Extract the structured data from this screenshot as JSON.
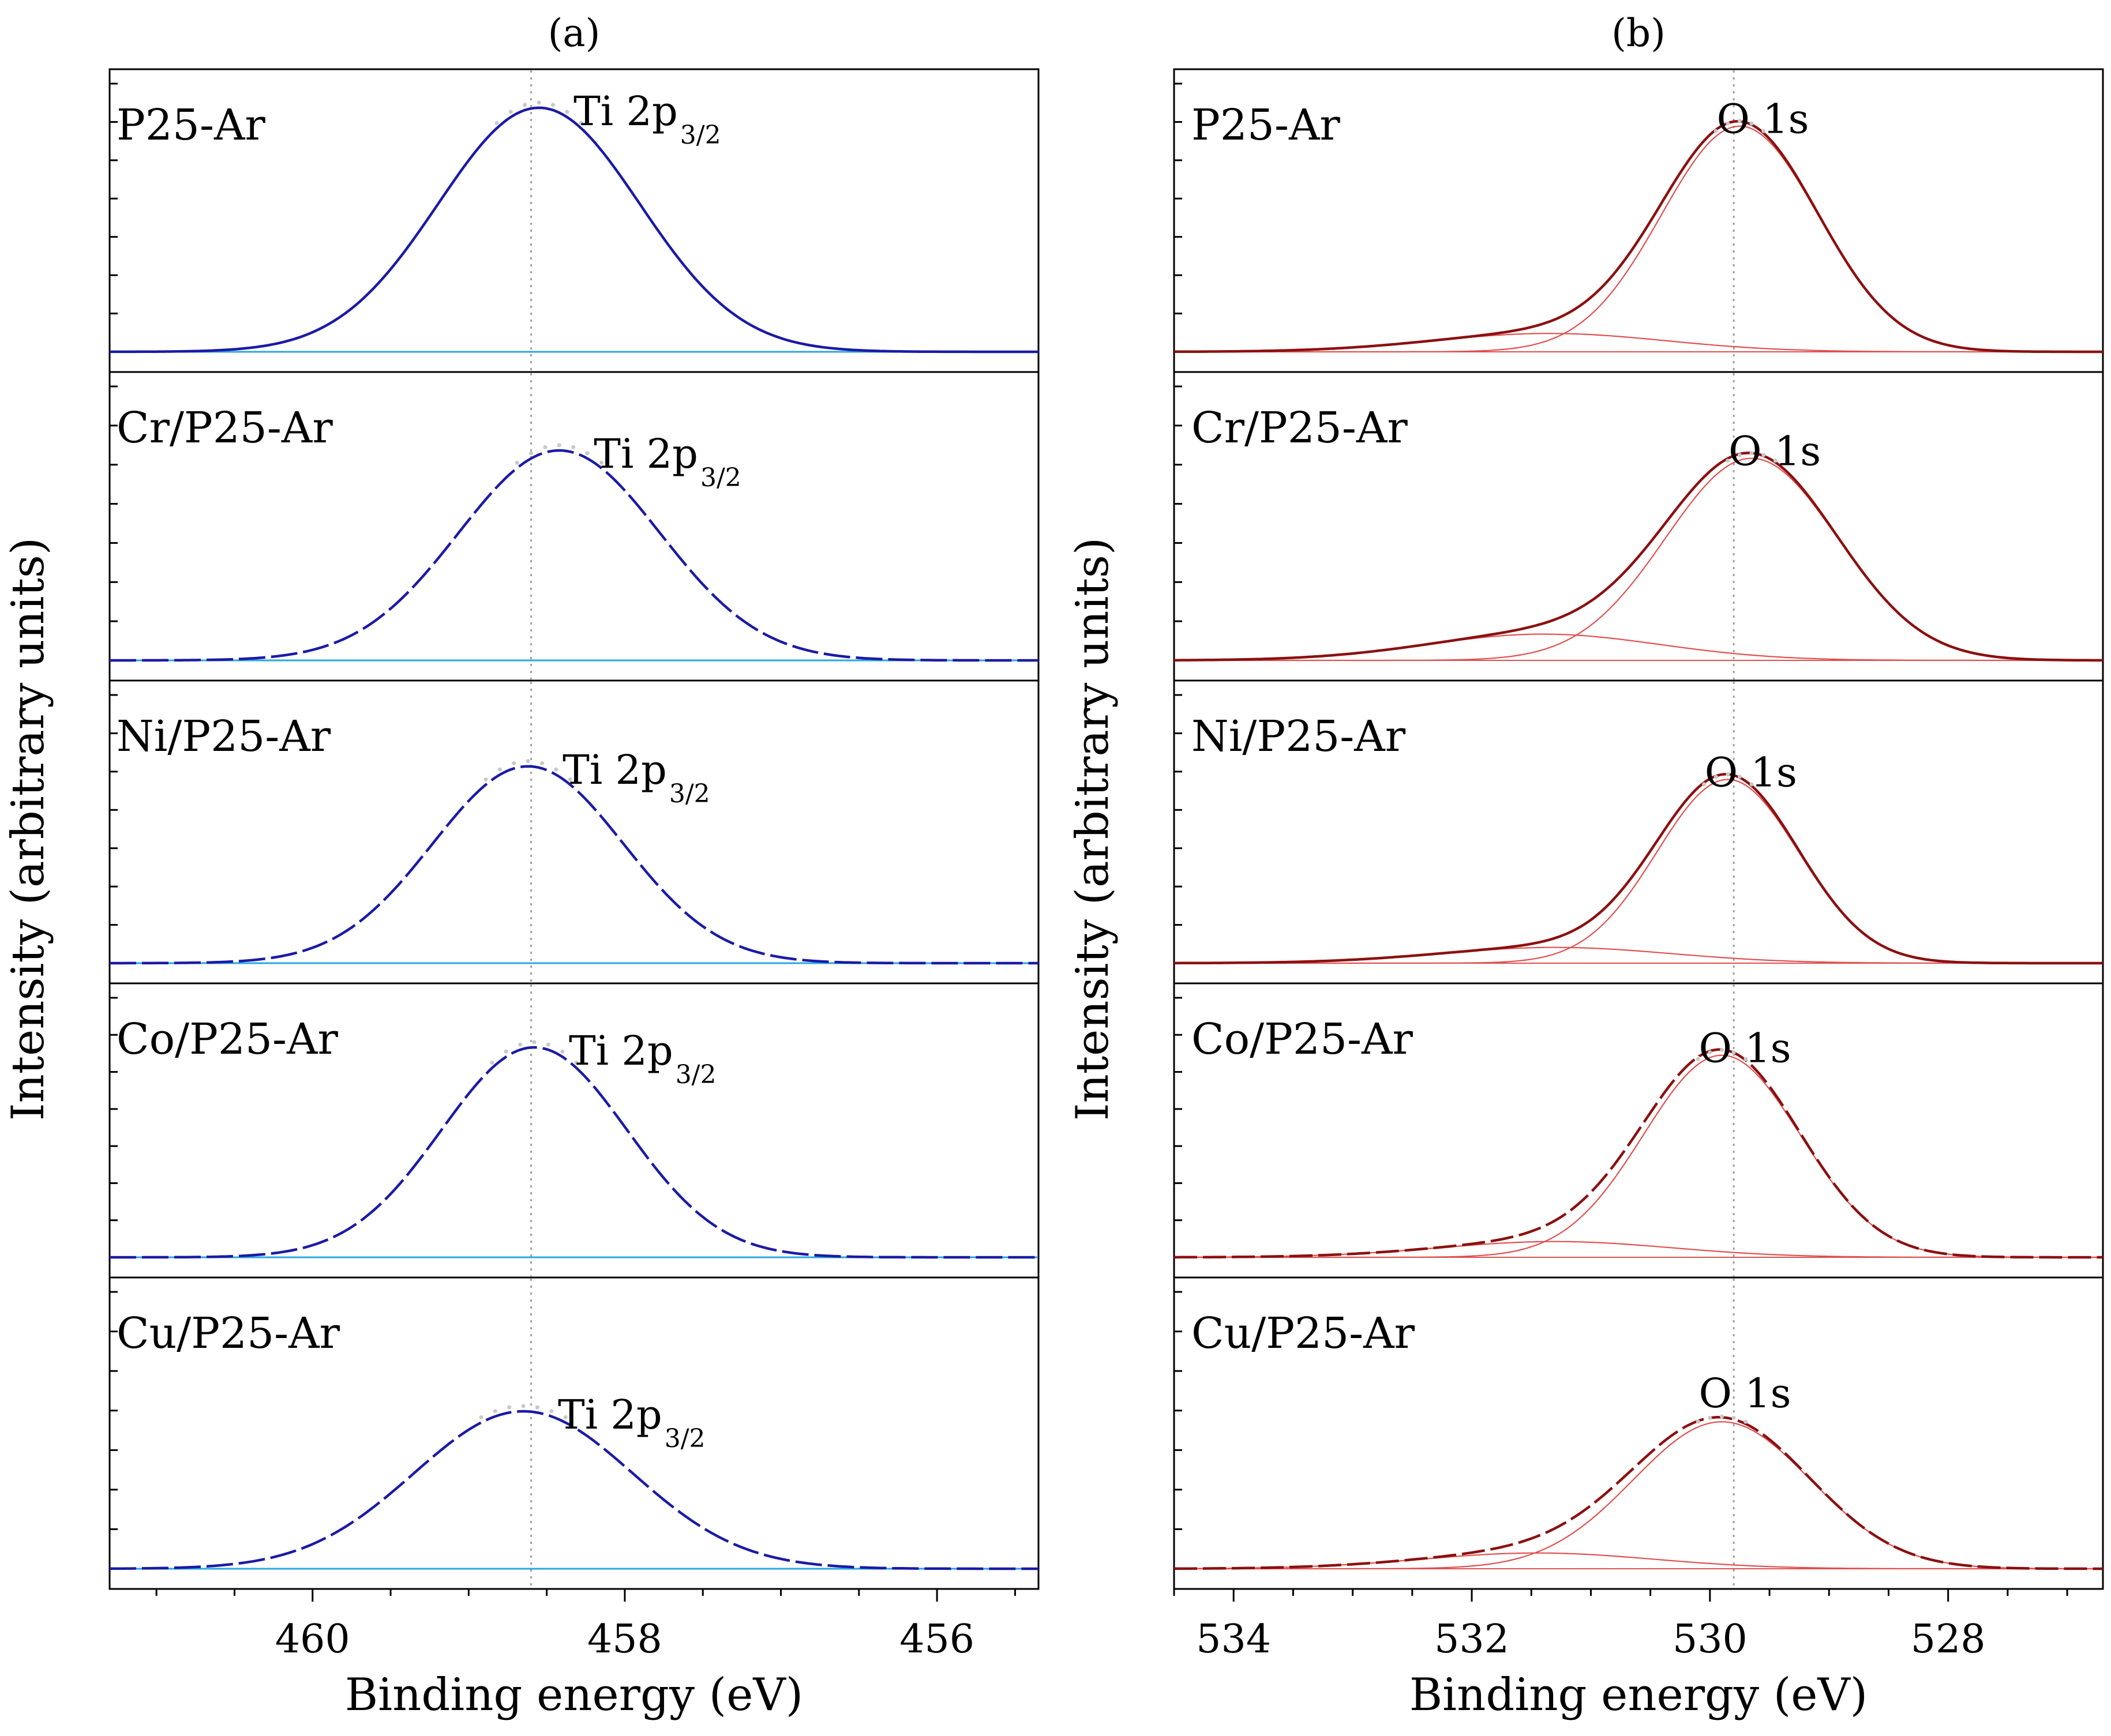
{
  "chart_data": [
    {
      "panel_label": "(a)",
      "type": "line",
      "xlabel": "Binding energy (eV)",
      "ylabel": "Intensity (arbitrary units)",
      "xlim": [
        461.3,
        455.35
      ],
      "x_reversed": true,
      "xticks": [
        "460",
        "458",
        "456"
      ],
      "xtick_values": [
        460,
        458,
        456
      ],
      "reference_line_x": 458.6,
      "colors": {
        "fit": "#1a1aa6",
        "baseline": "#2aa6e0",
        "data_points": "#c8c8c8"
      },
      "subplots": [
        {
          "sample": "P25-Ar",
          "peak_label": "Ti 2p",
          "peak_sub": "3/2",
          "peak_center": 458.55,
          "fwhm": 1.52,
          "amplitude": 0.93
        },
        {
          "sample": "Cr/P25-Ar",
          "peak_label": "Ti 2p",
          "peak_sub": "3/2",
          "peak_center": 458.42,
          "fwhm": 1.52,
          "amplitude": 0.8
        },
        {
          "sample": "Ni/P25-Ar",
          "peak_label": "Ti 2p",
          "peak_sub": "3/2",
          "peak_center": 458.62,
          "fwhm": 1.44,
          "amplitude": 0.75
        },
        {
          "sample": "Co/P25-Ar",
          "peak_label": "Ti 2p",
          "peak_sub": "3/2",
          "peak_center": 458.58,
          "fwhm": 1.4,
          "amplitude": 0.8
        },
        {
          "sample": "Cu/P25-Ar",
          "peak_label": "Ti 2p",
          "peak_sub": "3/2",
          "peak_center": 458.65,
          "fwhm": 1.65,
          "amplitude": 0.6
        }
      ]
    },
    {
      "panel_label": "(b)",
      "type": "line",
      "xlabel": "Binding energy (eV)",
      "ylabel": "Intensity (arbitrary units)",
      "xlim": [
        534.5,
        526.7
      ],
      "x_reversed": true,
      "xticks": [
        "534",
        "532",
        "530",
        "528"
      ],
      "xtick_values": [
        534,
        532,
        530,
        528
      ],
      "reference_line_x": 529.8,
      "colors": {
        "total": "#8b1010",
        "component": "#e05050",
        "data_points": "#c8c8c8"
      },
      "subplots": [
        {
          "sample": "P25-Ar",
          "peak_label": "O 1s",
          "main_center": 529.75,
          "main_fwhm": 1.55,
          "main_amplitude": 0.86,
          "shoulder_center": 531.35,
          "shoulder_fwhm": 2.3,
          "shoulder_amplitude": 0.07
        },
        {
          "sample": "Cr/P25-Ar",
          "peak_label": "O 1s",
          "main_center": 529.65,
          "main_fwhm": 1.7,
          "main_amplitude": 0.77,
          "shoulder_center": 531.4,
          "shoulder_fwhm": 2.3,
          "shoulder_amplitude": 0.1
        },
        {
          "sample": "Ni/P25-Ar",
          "peak_label": "O 1s",
          "main_center": 529.85,
          "main_fwhm": 1.4,
          "main_amplitude": 0.7,
          "shoulder_center": 531.3,
          "shoulder_fwhm": 2.3,
          "shoulder_amplitude": 0.06
        },
        {
          "sample": "Co/P25-Ar",
          "peak_label": "O 1s",
          "main_center": 529.9,
          "main_fwhm": 1.55,
          "main_amplitude": 0.77,
          "shoulder_center": 531.3,
          "shoulder_fwhm": 2.3,
          "shoulder_amplitude": 0.06
        },
        {
          "sample": "Cu/P25-Ar",
          "peak_label": "O 1s",
          "main_center": 529.9,
          "main_fwhm": 1.75,
          "main_amplitude": 0.56,
          "shoulder_center": 531.45,
          "shoulder_fwhm": 2.3,
          "shoulder_amplitude": 0.06
        }
      ]
    }
  ]
}
